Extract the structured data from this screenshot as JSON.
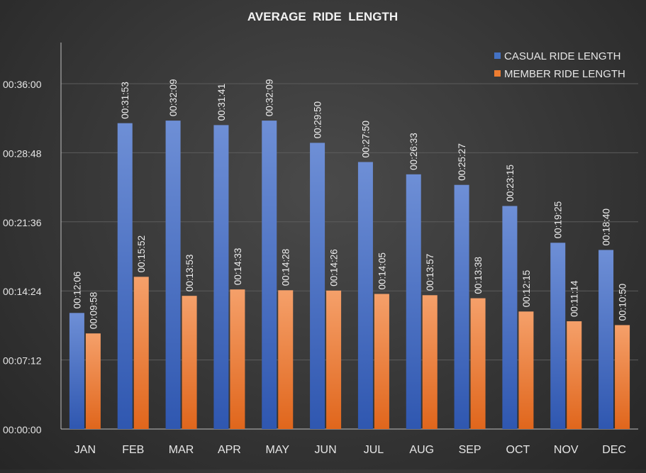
{
  "chart_data": {
    "type": "bar",
    "title": "AVERAGE  RIDE  LENGTH",
    "categories": [
      "JAN",
      "FEB",
      "MAR",
      "APR",
      "MAY",
      "JUN",
      "JUL",
      "AUG",
      "SEP",
      "OCT",
      "NOV",
      "DEC"
    ],
    "y_ticks": [
      "00:00:00",
      "00:07:12",
      "00:14:24",
      "00:21:36",
      "00:28:48",
      "00:36:00"
    ],
    "ylim": [
      0,
      2160
    ],
    "y_unit": "seconds",
    "grid": true,
    "legend_position": "top-right",
    "series": [
      {
        "name": "CASUAL RIDE LENGTH",
        "color": "#4472c4",
        "values": [
          726,
          1913,
          1929,
          1901,
          1929,
          1790,
          1670,
          1593,
          1527,
          1395,
          1165,
          1120
        ],
        "labels": [
          "00:12:06",
          "00:31:53",
          "00:32:09",
          "00:31:41",
          "00:32:09",
          "00:29:50",
          "00:27:50",
          "00:26:33",
          "00:25:27",
          "00:23:15",
          "00:19:25",
          "00:18:40"
        ]
      },
      {
        "name": "MEMBER RIDE LENGTH",
        "color": "#ed7d31",
        "values": [
          598,
          952,
          833,
          873,
          868,
          866,
          845,
          837,
          818,
          735,
          674,
          650
        ],
        "labels": [
          "00:09:58",
          "00:15:52",
          "00:13:53",
          "00:14:33",
          "00:14:28",
          "00:14:26",
          "00:14:05",
          "00:13:57",
          "00:13:38",
          "00:12:15",
          "00:11:14",
          "00:10:50"
        ]
      }
    ]
  }
}
